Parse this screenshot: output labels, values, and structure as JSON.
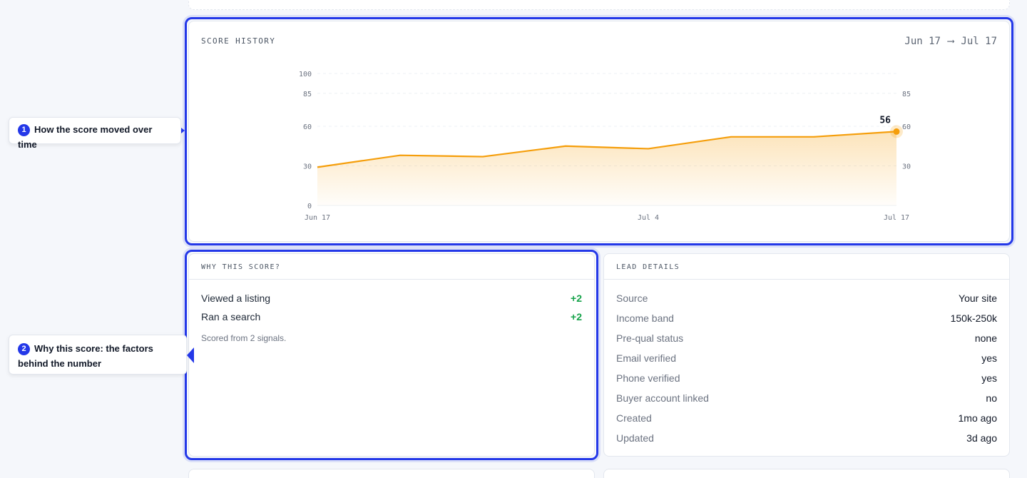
{
  "score_history": {
    "title": "SCORE HISTORY",
    "range_start": "Jun 17",
    "range_arrow": "⟶",
    "range_end": "Jul 17"
  },
  "chart_data": {
    "type": "area",
    "x": [
      "Jun 17",
      "Jun 22",
      "Jun 27",
      "Jul 2",
      "Jul 7",
      "Jul 12",
      "Jul 15",
      "Jul 17"
    ],
    "values": [
      29,
      38,
      37,
      45,
      43,
      52,
      52,
      56
    ],
    "x_tick_labels": [
      "Jun 17",
      "Jul 4",
      "Jul 17"
    ],
    "left_tick_labels": [
      "100",
      "85",
      "60",
      "30",
      "0"
    ],
    "right_tick_labels": [
      "85",
      "60",
      "30"
    ],
    "ylim": [
      0,
      100
    ],
    "last_value_label": "56",
    "color": "#f59e0b",
    "grid": true
  },
  "why_score": {
    "title": "WHY THIS SCORE?",
    "factors": [
      {
        "label": "Viewed a listing",
        "value": "+2"
      },
      {
        "label": "Ran a search",
        "value": "+2"
      }
    ],
    "note": "Scored from 2 signals."
  },
  "lead_details": {
    "title": "LEAD DETAILS",
    "rows": [
      {
        "label": "Source",
        "value": "Your site"
      },
      {
        "label": "Income band",
        "value": "150k-250k"
      },
      {
        "label": "Pre-qual status",
        "value": "none"
      },
      {
        "label": "Email verified",
        "value": "yes"
      },
      {
        "label": "Phone verified",
        "value": "yes"
      },
      {
        "label": "Buyer account linked",
        "value": "no"
      },
      {
        "label": "Created",
        "value": "1mo ago"
      },
      {
        "label": "Updated",
        "value": "3d ago"
      }
    ]
  },
  "callouts": [
    {
      "num": "1",
      "text": "How the score moved over time"
    },
    {
      "num": "2",
      "text": "Why this score: the factors behind the number"
    }
  ],
  "colors": {
    "accent": "#2438e8",
    "chart_line": "#f59e0b",
    "positive": "#16a34a"
  }
}
